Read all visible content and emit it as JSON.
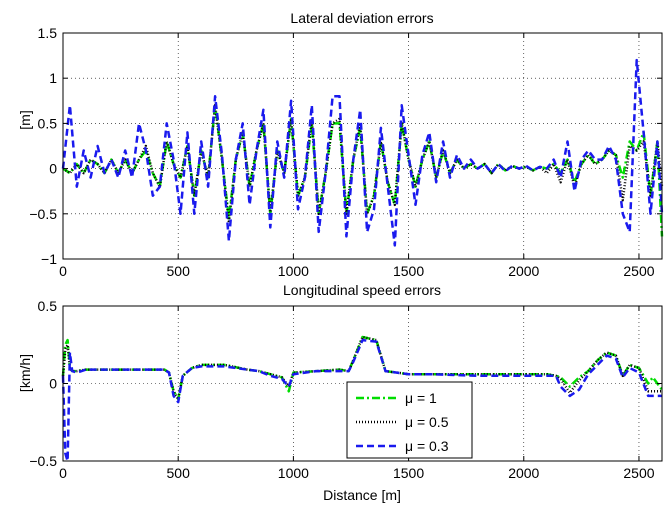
{
  "chart_data": [
    {
      "type": "line",
      "title": "Lateral deviation errors",
      "xlabel": "",
      "ylabel": "[m]",
      "xlim": [
        0,
        2600
      ],
      "ylim": [
        -1,
        1.5
      ],
      "xticks": [
        0,
        500,
        1000,
        1500,
        2000,
        2500
      ],
      "yticks": [
        -1,
        -0.5,
        0,
        0.5,
        1,
        1.5
      ],
      "ytick_labels": [
        "−1",
        "−0.5",
        "0",
        "0.5",
        "1",
        "1.5"
      ],
      "grid": true,
      "x": [
        0,
        30,
        60,
        90,
        120,
        150,
        180,
        210,
        240,
        270,
        300,
        330,
        360,
        390,
        420,
        450,
        480,
        510,
        540,
        570,
        600,
        630,
        660,
        690,
        720,
        750,
        780,
        810,
        840,
        870,
        900,
        930,
        960,
        990,
        1020,
        1050,
        1080,
        1110,
        1140,
        1170,
        1200,
        1230,
        1260,
        1290,
        1320,
        1350,
        1380,
        1410,
        1440,
        1470,
        1500,
        1530,
        1560,
        1590,
        1620,
        1650,
        1680,
        1710,
        1740,
        1770,
        1800,
        1830,
        1860,
        1890,
        1920,
        1950,
        1980,
        2010,
        2040,
        2070,
        2100,
        2130,
        2160,
        2190,
        2220,
        2250,
        2280,
        2310,
        2340,
        2370,
        2400,
        2430,
        2460,
        2490,
        2520,
        2550,
        2580,
        2600
      ],
      "series": [
        {
          "name": "μ = 1",
          "color": "#00dd00",
          "style": "dashdot",
          "values": [
            0,
            -0.05,
            0.05,
            -0.05,
            0.1,
            0.05,
            -0.05,
            0.1,
            -0.05,
            0.1,
            -0.05,
            0.1,
            0.2,
            -0.05,
            -0.2,
            0.3,
            0.05,
            -0.1,
            0.25,
            -0.3,
            0.2,
            -0.1,
            0.7,
            0.1,
            -0.55,
            0.1,
            0.4,
            -0.2,
            0.2,
            0.5,
            -0.5,
            0.2,
            -0.05,
            0.55,
            -0.3,
            -0.1,
            0.5,
            -0.5,
            -0.05,
            0.5,
            0.5,
            -0.5,
            0.1,
            0.45,
            -0.5,
            -0.3,
            0.3,
            -0.15,
            -0.4,
            0.5,
            0.1,
            -0.2,
            0.1,
            0.3,
            -0.1,
            0.2,
            -0.05,
            0.1,
            0,
            0.05,
            0,
            0.05,
            -0.05,
            0.05,
            -0.02,
            0.03,
            0,
            0.02,
            -0.02,
            0.02,
            0,
            0.05,
            -0.05,
            0.1,
            -0.15,
            0.05,
            0.15,
            0.05,
            0.1,
            0.2,
            0.15,
            -0.1,
            0.3,
            0.2,
            0.4,
            -0.3,
            0.3,
            -0.75
          ]
        },
        {
          "name": "μ = 0.5",
          "color": "#000000",
          "style": "dotted",
          "values": [
            0,
            -0.05,
            0.05,
            -0.05,
            0.1,
            0.05,
            -0.05,
            0.1,
            -0.05,
            0.1,
            -0.05,
            0.1,
            0.25,
            -0.05,
            -0.2,
            0.3,
            0.05,
            -0.1,
            0.25,
            -0.3,
            0.2,
            -0.1,
            0.7,
            0.1,
            -0.6,
            0.1,
            0.4,
            -0.2,
            0.2,
            0.5,
            -0.5,
            0.2,
            -0.05,
            0.55,
            -0.3,
            -0.1,
            0.55,
            -0.5,
            -0.05,
            0.5,
            0.55,
            -0.5,
            0.1,
            0.5,
            -0.5,
            -0.3,
            0.3,
            -0.15,
            -0.4,
            0.5,
            0.1,
            -0.2,
            0.1,
            0.3,
            -0.1,
            0.2,
            -0.05,
            0.1,
            0,
            0.05,
            0,
            0.05,
            -0.05,
            0.05,
            -0.02,
            0.03,
            0,
            0.02,
            -0.02,
            0.02,
            -0.05,
            0.05,
            -0.15,
            0.1,
            -0.2,
            0.05,
            0.15,
            0.05,
            0.1,
            0.2,
            0.15,
            -0.35,
            0.25,
            0.2,
            0.3,
            -0.3,
            0.3,
            -0.2
          ]
        },
        {
          "name": "μ = 0.3",
          "color": "#1a1aee",
          "style": "dashed",
          "values": [
            0,
            0.7,
            -0.2,
            0.2,
            -0.1,
            0.25,
            -0.05,
            0.1,
            -0.1,
            0.2,
            -0.1,
            0.5,
            0.2,
            -0.3,
            -0.2,
            0.5,
            0.1,
            -0.5,
            0.4,
            -0.5,
            0.3,
            -0.2,
            0.8,
            0.15,
            -0.8,
            0.1,
            0.5,
            -0.4,
            0.2,
            0.65,
            -0.65,
            0.3,
            -0.1,
            0.75,
            -0.45,
            -0.1,
            0.7,
            -0.7,
            -0.05,
            0.8,
            0.8,
            -0.75,
            0.1,
            0.65,
            -0.7,
            -0.45,
            0.45,
            -0.2,
            -0.85,
            0.7,
            0.15,
            -0.4,
            0.15,
            0.4,
            -0.15,
            0.3,
            -0.1,
            0.15,
            0,
            0.1,
            0,
            0.05,
            -0.05,
            0.05,
            -0.03,
            0.03,
            0,
            0.03,
            -0.02,
            0.02,
            0,
            0.1,
            -0.1,
            0.3,
            -0.25,
            0.1,
            0.2,
            0.1,
            0.1,
            0.25,
            0.1,
            -0.5,
            -0.7,
            1.2,
            0.4,
            -0.5,
            0.3,
            -0.5
          ]
        }
      ]
    },
    {
      "type": "line",
      "title": "Longitudinal speed errors",
      "xlabel": "Distance [m]",
      "ylabel": "[km/h]",
      "xlim": [
        0,
        2600
      ],
      "ylim": [
        -0.5,
        0.5
      ],
      "xticks": [
        0,
        500,
        1000,
        1500,
        2000,
        2500
      ],
      "yticks": [
        -0.5,
        0,
        0.5
      ],
      "ytick_labels": [
        "−0.5",
        "0",
        "0.5"
      ],
      "grid": true,
      "legend": "bottom-center",
      "x": [
        0,
        10,
        20,
        30,
        40,
        60,
        100,
        200,
        300,
        400,
        440,
        460,
        480,
        500,
        520,
        560,
        600,
        700,
        800,
        850,
        900,
        950,
        980,
        1000,
        1100,
        1200,
        1240,
        1260,
        1300,
        1360,
        1400,
        1500,
        1600,
        1800,
        2000,
        2100,
        2140,
        2160,
        2200,
        2240,
        2280,
        2320,
        2360,
        2400,
        2430,
        2460,
        2500,
        2540,
        2560,
        2600
      ],
      "series": [
        {
          "name": "μ = 1",
          "color": "#00dd00",
          "style": "dashdot",
          "values": [
            0.05,
            0.25,
            0.28,
            0.1,
            0.08,
            0.08,
            0.09,
            0.09,
            0.09,
            0.09,
            0.09,
            0.07,
            -0.05,
            -0.1,
            0.05,
            0.1,
            0.12,
            0.12,
            0.09,
            0.08,
            0.06,
            0.04,
            -0.05,
            0.07,
            0.08,
            0.09,
            0.08,
            0.15,
            0.3,
            0.28,
            0.08,
            0.06,
            0.06,
            0.06,
            0.06,
            0.06,
            0.05,
            0.04,
            -0.02,
            0.04,
            0.08,
            0.15,
            0.2,
            0.18,
            0.05,
            0.12,
            0.1,
            0,
            0.04,
            -0.04
          ]
        },
        {
          "name": "μ = 0.5",
          "color": "#000000",
          "style": "dotted",
          "values": [
            0.05,
            0.22,
            0.25,
            0.1,
            0.08,
            0.08,
            0.09,
            0.09,
            0.09,
            0.09,
            0.09,
            0.07,
            -0.05,
            -0.1,
            0.05,
            0.1,
            0.12,
            0.12,
            0.09,
            0.08,
            0.06,
            0.04,
            -0.02,
            0.07,
            0.08,
            0.09,
            0.08,
            0.15,
            0.3,
            0.28,
            0.08,
            0.06,
            0.06,
            0.06,
            0.06,
            0.06,
            0.05,
            0.03,
            -0.06,
            0.02,
            0.08,
            0.15,
            0.2,
            0.18,
            0.05,
            0.12,
            0.1,
            -0.05,
            -0.05,
            -0.05
          ]
        },
        {
          "name": "μ = 0.3",
          "color": "#1a1aee",
          "style": "dashed",
          "values": [
            0.05,
            -0.45,
            -0.5,
            0.2,
            0.08,
            0.07,
            0.09,
            0.09,
            0.09,
            0.09,
            0.09,
            0.07,
            -0.08,
            -0.12,
            0.05,
            0.1,
            0.11,
            0.11,
            0.09,
            0.08,
            0.05,
            0.03,
            -0.02,
            0.06,
            0.08,
            0.08,
            0.08,
            0.14,
            0.28,
            0.27,
            0.08,
            0.06,
            0.06,
            0.05,
            0.05,
            0.05,
            0.05,
            -0.02,
            -0.08,
            -0.04,
            0.06,
            0.12,
            0.18,
            0.16,
            0.04,
            0.1,
            0.07,
            -0.08,
            -0.08,
            -0.08
          ]
        }
      ]
    }
  ]
}
